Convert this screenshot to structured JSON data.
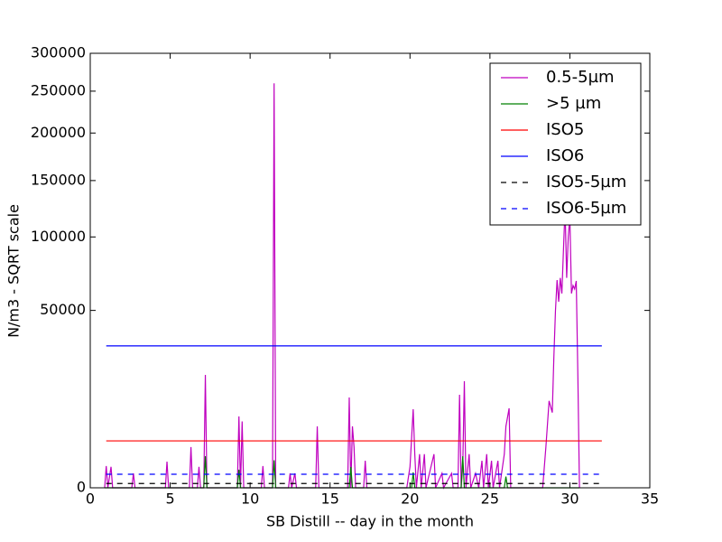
{
  "chart_data": {
    "type": "line",
    "xlabel": "SB Distill -- day in the month",
    "ylabel": "N/m3 - SQRT scale",
    "xlim": [
      0,
      35
    ],
    "xticks": [
      0,
      5,
      10,
      15,
      20,
      25,
      30,
      35
    ],
    "ylim": [
      0,
      300000
    ],
    "yticks": [
      0,
      50000,
      100000,
      150000,
      200000,
      250000,
      300000
    ],
    "yscale": "sqrt",
    "legend": "upper right",
    "series": [
      {
        "name": "0.5-5µm",
        "color": "#bf00bf",
        "dash": false,
        "x": [
          0.9,
          1.0,
          1.1,
          1.3,
          1.4,
          2.6,
          2.7,
          2.8,
          4.7,
          4.8,
          4.9,
          6.2,
          6.3,
          6.4,
          6.7,
          6.8,
          6.9,
          7.1,
          7.2,
          7.3,
          9.2,
          9.3,
          9.4,
          9.5,
          9.6,
          10.7,
          10.8,
          10.9,
          11.4,
          11.5,
          11.6,
          12.4,
          12.5,
          12.6,
          12.8,
          12.9,
          14.1,
          14.2,
          14.3,
          16.1,
          16.2,
          16.3,
          16.4,
          16.5,
          16.6,
          17.1,
          17.2,
          17.3,
          19.8,
          20.0,
          20.2,
          20.3,
          20.4,
          20.6,
          20.7,
          20.9,
          21.0,
          21.5,
          21.6,
          22.0,
          22.1,
          22.6,
          22.7,
          23.0,
          23.1,
          23.2,
          23.3,
          23.4,
          23.5,
          23.7,
          23.8,
          24.1,
          24.3,
          24.5,
          24.6,
          24.8,
          24.9,
          25.1,
          25.2,
          25.5,
          25.6,
          25.9,
          26.0,
          26.2,
          26.3,
          28.3,
          28.5,
          28.7,
          28.9,
          29.0,
          29.1,
          29.2,
          29.3,
          29.4,
          29.5,
          29.6,
          29.7,
          29.8,
          29.9,
          30.0,
          30.1,
          30.2,
          30.3,
          30.4,
          30.5,
          30.6
        ],
        "values": [
          0,
          750,
          0,
          700,
          0,
          0,
          330,
          0,
          0,
          1090,
          0,
          0,
          2630,
          0,
          0,
          700,
          0,
          0,
          20270,
          0,
          0,
          8090,
          0,
          7000,
          0,
          0,
          750,
          0,
          0,
          260000,
          0,
          0,
          330,
          0,
          330,
          0,
          0,
          6000,
          0,
          0,
          12970,
          0,
          6000,
          2630,
          0,
          0,
          1160,
          0,
          0,
          700,
          9800,
          1800,
          0,
          1800,
          0,
          1800,
          0,
          1800,
          0,
          330,
          0,
          330,
          0,
          0,
          13760,
          0,
          700,
          18050,
          0,
          1800,
          0,
          330,
          0,
          1160,
          0,
          1800,
          0,
          1160,
          0,
          1160,
          0,
          1800,
          6000,
          10040,
          0,
          0,
          2630,
          12000,
          9000,
          27260,
          50000,
          68600,
          55000,
          70000,
          60000,
          90000,
          124600,
          70000,
          100000,
          116700,
          60000,
          65000,
          62800,
          68000,
          20000,
          0
        ]
      },
      {
        "name": ">5 µm",
        "color": "#008000",
        "dash": false,
        "x": [
          0.9,
          7.1,
          7.2,
          7.3,
          9.2,
          9.3,
          9.4,
          11.4,
          11.5,
          11.6,
          16.2,
          16.3,
          16.4,
          20.1,
          20.2,
          20.3,
          23.2,
          23.3,
          23.4,
          25.9,
          26.0,
          26.1,
          30.6
        ],
        "values": [
          0,
          0,
          1590,
          0,
          0,
          520,
          0,
          0,
          1200,
          0,
          0,
          690,
          0,
          0,
          375,
          0,
          0,
          1590,
          0,
          0,
          200,
          0,
          0
        ]
      },
      {
        "name": "ISO5",
        "color": "#ff0000",
        "dash": false,
        "x": [
          1,
          32
        ],
        "values": [
          3500,
          3500
        ]
      },
      {
        "name": "ISO6",
        "color": "#0000ff",
        "dash": false,
        "x": [
          1,
          32
        ],
        "values": [
          32000,
          32000
        ]
      },
      {
        "name": "ISO5-5µm",
        "color": "#000000",
        "dash": true,
        "x": [
          1,
          32
        ],
        "values": [
          29,
          29
        ]
      },
      {
        "name": "ISO6-5µm",
        "color": "#0000ff",
        "dash": true,
        "x": [
          1,
          32
        ],
        "values": [
          293,
          293
        ]
      }
    ]
  }
}
